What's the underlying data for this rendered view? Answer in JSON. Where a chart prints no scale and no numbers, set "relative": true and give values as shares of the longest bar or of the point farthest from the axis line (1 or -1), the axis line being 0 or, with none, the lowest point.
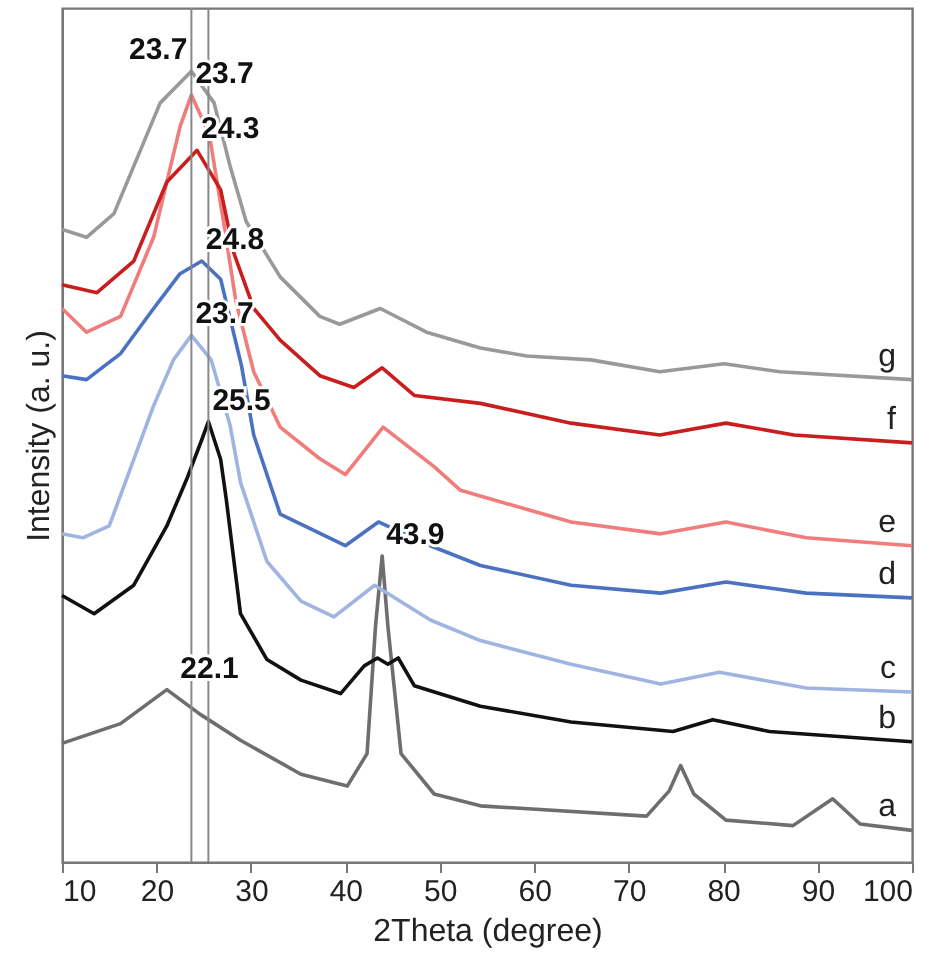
{
  "chart_data": {
    "type": "line",
    "xlabel": "2Theta (degree)",
    "ylabel": "Intensity (a. u.)",
    "relative": true,
    "xlim": [
      10,
      100
    ],
    "xticks": [
      10,
      20,
      30,
      40,
      50,
      60,
      70,
      80,
      90,
      100
    ],
    "grid": false,
    "marker": "none",
    "line_style": "solid",
    "series": [
      {
        "name": "a",
        "color": "#6e6e6e",
        "x": [
          10,
          16.2,
          21.1,
          24.6,
          28.9,
          35.3,
          40.2,
          42.3,
          43.2,
          43.9,
          44.5,
          45.9,
          49.4,
          54.3,
          71.9,
          74.3,
          75.5,
          76.9,
          80.3,
          87.4,
          91.6,
          94.5,
          100
        ],
        "values": [
          0.15,
          0.175,
          0.218,
          0.187,
          0.154,
          0.111,
          0.096,
          0.137,
          0.299,
          0.387,
          0.299,
          0.137,
          0.086,
          0.071,
          0.058,
          0.09,
          0.122,
          0.086,
          0.053,
          0.046,
          0.08,
          0.048,
          0.04
        ]
      },
      {
        "name": "b",
        "color": "#111111",
        "x": [
          10,
          13.4,
          17.6,
          21.1,
          23.2,
          24.8,
          25.5,
          26.8,
          27.4,
          28.9,
          31.7,
          35.3,
          39.5,
          42,
          43.4,
          44.5,
          45.6,
          47.3,
          54.3,
          63.9,
          74.7,
          78.9,
          84.9,
          100
        ],
        "values": [
          0.337,
          0.314,
          0.35,
          0.425,
          0.484,
          0.534,
          0.557,
          0.509,
          0.458,
          0.314,
          0.256,
          0.23,
          0.213,
          0.248,
          0.258,
          0.25,
          0.258,
          0.223,
          0.197,
          0.177,
          0.165,
          0.18,
          0.165,
          0.152
        ]
      },
      {
        "name": "c",
        "color": "#9fb4e0",
        "x": [
          10,
          12.2,
          15,
          19.7,
          21.8,
          23.7,
          25.8,
          27.8,
          28.9,
          31.7,
          35.3,
          38.8,
          43.1,
          49,
          54.3,
          63.9,
          73.4,
          79.6,
          88.8,
          100
        ],
        "values": [
          0.415,
          0.41,
          0.425,
          0.577,
          0.635,
          0.666,
          0.635,
          0.552,
          0.48,
          0.38,
          0.33,
          0.31,
          0.35,
          0.306,
          0.28,
          0.25,
          0.225,
          0.24,
          0.22,
          0.215
        ]
      },
      {
        "name": "d",
        "color": "#4a72c0",
        "x": [
          10,
          12.6,
          16.2,
          19.7,
          22.5,
          24.8,
          26.8,
          29,
          30.3,
          33.1,
          40,
          43.5,
          49,
          54.3,
          63.9,
          73.4,
          80.3,
          88.8,
          100
        ],
        "values": [
          0.615,
          0.61,
          0.643,
          0.7,
          0.744,
          0.76,
          0.737,
          0.628,
          0.54,
          0.44,
          0.4,
          0.43,
          0.4,
          0.375,
          0.35,
          0.34,
          0.354,
          0.34,
          0.334
        ]
      },
      {
        "name": "e",
        "color": "#f07c7c",
        "x": [
          10,
          12.6,
          16.2,
          19.7,
          22.5,
          23.7,
          25.6,
          27.1,
          28.4,
          30.3,
          33.1,
          37.3,
          40,
          44,
          49.4,
          52.2,
          63.9,
          73.4,
          80.3,
          88.8,
          100
        ],
        "values": [
          0.7,
          0.67,
          0.69,
          0.79,
          0.93,
          0.97,
          0.92,
          0.81,
          0.71,
          0.62,
          0.55,
          0.51,
          0.49,
          0.55,
          0.5,
          0.47,
          0.43,
          0.415,
          0.43,
          0.41,
          0.4
        ]
      },
      {
        "name": "f",
        "color": "#c81e1e",
        "x": [
          10,
          13.7,
          17.6,
          21.1,
          24.3,
          26.8,
          28.2,
          30.3,
          33.1,
          37.3,
          40.9,
          43.9,
          47.3,
          54.3,
          63.9,
          73.3,
          80.3,
          87.5,
          100
        ],
        "values": [
          0.73,
          0.72,
          0.76,
          0.86,
          0.9,
          0.85,
          0.77,
          0.7,
          0.66,
          0.615,
          0.6,
          0.625,
          0.59,
          0.58,
          0.555,
          0.54,
          0.555,
          0.54,
          0.53
        ]
      },
      {
        "name": "g",
        "color": "#999999",
        "x": [
          10,
          12.6,
          15.5,
          17.6,
          20.4,
          23.7,
          26.1,
          27.8,
          29.5,
          33.1,
          37.3,
          39.4,
          43.7,
          48.6,
          54.3,
          59.2,
          66,
          73.3,
          80.1,
          86,
          100
        ],
        "values": [
          0.8,
          0.79,
          0.82,
          0.88,
          0.96,
          1.0,
          0.96,
          0.88,
          0.81,
          0.74,
          0.69,
          0.68,
          0.7,
          0.67,
          0.65,
          0.64,
          0.635,
          0.62,
          0.63,
          0.62,
          0.61
        ]
      }
    ],
    "ref_lines": [
      {
        "axis": "x",
        "value": 23.7,
        "color": "#888888"
      },
      {
        "axis": "x",
        "value": 25.5,
        "color": "#888888"
      }
    ],
    "annotations": [
      {
        "text": "23.7",
        "x": 23.7,
        "y": 1.0
      },
      {
        "text": "23.7",
        "x": 23.7,
        "y": 0.97
      },
      {
        "text": "24.3",
        "x": 24.3,
        "y": 0.9
      },
      {
        "text": "24.8",
        "x": 24.8,
        "y": 0.76
      },
      {
        "text": "23.7",
        "x": 23.7,
        "y": 0.666
      },
      {
        "text": "25.5",
        "x": 25.5,
        "y": 0.557
      },
      {
        "text": "43.9",
        "x": 43.9,
        "y": 0.387
      },
      {
        "text": "22.1",
        "x": 22.1,
        "y": 0.218
      }
    ]
  }
}
